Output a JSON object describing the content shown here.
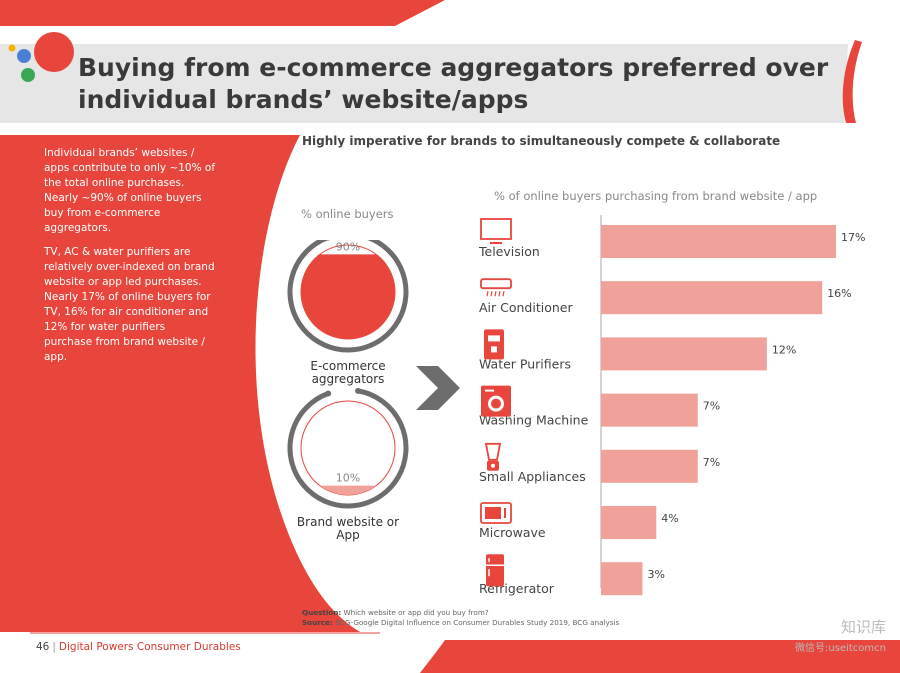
{
  "title": "Buying from e-commerce aggregators preferred over individual brands’ website/apps",
  "left_panel": {
    "para1": "Individual brands’ websites / apps contribute to only ~10% of the total online purchases. Nearly ~90% of online buyers buy from e-commerce aggregators.",
    "para2": "TV, AC & water purifiers are relatively over-indexed on brand website or app led purchases. Nearly 17% of online buyers for TV, 16% for air conditioner and 12% for water purifiers purchase from brand website / app."
  },
  "subtitle": "Highly imperative for brands to simultaneously compete & collaborate",
  "colors": {
    "brand_red": "#e8453c",
    "bar_pink": "#f0a29a",
    "title_bar": "#e6e6e6",
    "dark_gray": "#6d6d6d"
  },
  "chart_data": [
    {
      "type": "pie",
      "title": "% online buyers",
      "categories": [
        "E-commerce aggregators",
        "Brand website or App"
      ],
      "values": [
        90,
        10
      ],
      "value_labels": [
        "90%",
        "10%"
      ]
    },
    {
      "type": "bar",
      "orientation": "horizontal",
      "title": "% of online buyers purchasing from brand website / app",
      "categories": [
        "Television",
        "Air Conditioner",
        "Water Purifiers",
        "Washing Machine",
        "Small Appliances",
        "Microwave",
        "Refrigerator"
      ],
      "icons": [
        "television-icon",
        "air-conditioner-icon",
        "water-purifier-icon",
        "washing-machine-icon",
        "blender-icon",
        "microwave-icon",
        "refrigerator-icon"
      ],
      "values": [
        17,
        16,
        12,
        7,
        7,
        4,
        3
      ],
      "value_labels": [
        "17%",
        "16%",
        "12%",
        "7%",
        "7%",
        "4%",
        "3%"
      ],
      "xlim": [
        0,
        17
      ]
    }
  ],
  "footnote": {
    "question_label": "Question:",
    "question": "Which website or app did you buy from?",
    "source_label": "Source:",
    "source": "BCG-Google Digital Influence on Consumer Durables Study 2019, BCG analysis"
  },
  "footer": {
    "page_number": "46",
    "separator": "|",
    "report": "Digital Powers Consumer Durables"
  },
  "watermark": {
    "line1": "知识库",
    "line2": "微信号:useitcomcn"
  }
}
